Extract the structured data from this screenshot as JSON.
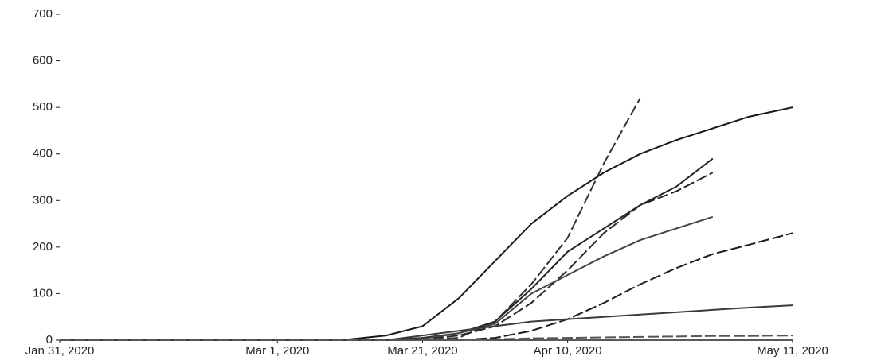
{
  "chart_data": {
    "type": "line",
    "x": [
      "2020-01-31",
      "2020-02-05",
      "2020-02-10",
      "2020-02-15",
      "2020-02-20",
      "2020-02-25",
      "2020-03-01",
      "2020-03-06",
      "2020-03-11",
      "2020-03-16",
      "2020-03-21",
      "2020-03-26",
      "2020-03-31",
      "2020-04-05",
      "2020-04-10",
      "2020-04-15",
      "2020-04-20",
      "2020-04-25",
      "2020-04-30",
      "2020-05-05",
      "2020-05-11"
    ],
    "series": [
      {
        "color": "#1a1a1a",
        "values": [
          0,
          0,
          0,
          0,
          0,
          0,
          0,
          0,
          2,
          10,
          30,
          90,
          170,
          250,
          310,
          360,
          400,
          430,
          455,
          480,
          500
        ]
      },
      {
        "color": "#333333",
        "values": [
          0,
          0,
          0,
          0,
          0,
          0,
          0,
          0,
          0,
          0,
          0,
          5,
          40,
          120,
          220,
          380,
          520,
          null,
          null,
          null,
          null
        ]
      },
      {
        "color": "#222222",
        "values": [
          0,
          0,
          0,
          0,
          0,
          0,
          0,
          0,
          0,
          0,
          5,
          15,
          40,
          110,
          190,
          240,
          290,
          330,
          390,
          null,
          null
        ]
      },
      {
        "color": "#2a2a2a",
        "values": [
          0,
          0,
          0,
          0,
          0,
          0,
          0,
          0,
          0,
          0,
          2,
          10,
          30,
          80,
          150,
          230,
          290,
          320,
          360,
          null,
          null
        ]
      },
      {
        "color": "#444444",
        "values": [
          0,
          0,
          0,
          0,
          0,
          0,
          0,
          0,
          0,
          0,
          3,
          15,
          35,
          100,
          140,
          180,
          215,
          240,
          265,
          null,
          null
        ]
      },
      {
        "color": "#1f1f1f",
        "values": [
          0,
          0,
          0,
          0,
          0,
          0,
          0,
          0,
          0,
          0,
          0,
          0,
          5,
          20,
          45,
          80,
          120,
          155,
          185,
          205,
          230
        ]
      },
      {
        "color": "#3a3a3a",
        "values": [
          0,
          0,
          0,
          0,
          0,
          0,
          0,
          0,
          0,
          0,
          10,
          20,
          30,
          40,
          45,
          50,
          55,
          60,
          65,
          70,
          75
        ]
      },
      {
        "color": "#555555",
        "values": [
          0,
          0,
          0,
          0,
          0,
          0,
          0,
          0,
          0,
          0,
          0,
          0,
          2,
          4,
          5,
          6,
          7,
          8,
          9,
          9,
          10
        ]
      }
    ],
    "xlim": [
      "2020-01-31",
      "2020-05-11"
    ],
    "xticks": [
      {
        "value": "2020-01-31",
        "label": "Jan 31, 2020"
      },
      {
        "value": "2020-03-01",
        "label": "Mar 1, 2020"
      },
      {
        "value": "2020-03-21",
        "label": "Mar 21, 2020"
      },
      {
        "value": "2020-04-10",
        "label": "Apr 10, 2020"
      },
      {
        "value": "2020-05-11",
        "label": "May 11, 2020"
      }
    ],
    "ylim": [
      0,
      700
    ],
    "yticks": [
      0,
      100,
      200,
      300,
      400,
      500,
      600,
      700
    ],
    "grid": false
  }
}
